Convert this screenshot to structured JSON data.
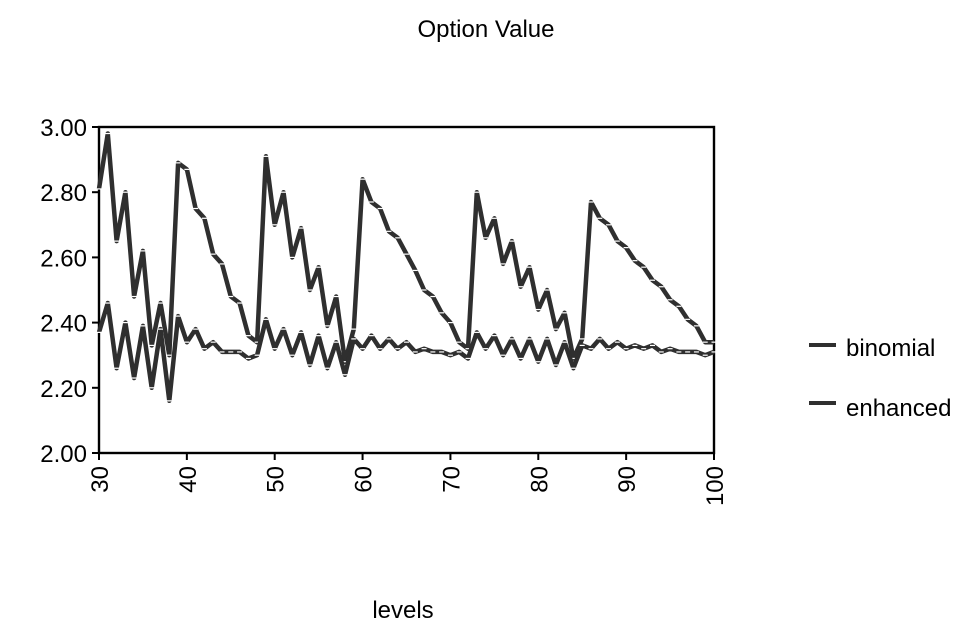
{
  "chart_data": {
    "type": "line",
    "title": "Option Value",
    "xlabel": "levels",
    "ylabel": "",
    "xlim": [
      30,
      100
    ],
    "ylim": [
      2.0,
      3.0
    ],
    "y_ticks": [
      "2.00",
      "2.20",
      "2.40",
      "2.60",
      "2.80",
      "3.00"
    ],
    "x_ticks": [
      "30",
      "40",
      "50",
      "60",
      "70",
      "80",
      "90",
      "100"
    ],
    "grid": false,
    "legend_position": "right",
    "line_color": "#2f2f2f",
    "x": [
      30,
      31,
      32,
      33,
      34,
      35,
      36,
      37,
      38,
      39,
      40,
      41,
      42,
      43,
      44,
      45,
      46,
      47,
      48,
      49,
      50,
      51,
      52,
      53,
      54,
      55,
      56,
      57,
      58,
      59,
      60,
      61,
      62,
      63,
      64,
      65,
      66,
      67,
      68,
      69,
      70,
      71,
      72,
      73,
      74,
      75,
      76,
      77,
      78,
      79,
      80,
      81,
      82,
      83,
      84,
      85,
      86,
      87,
      88,
      89,
      90,
      91,
      92,
      93,
      94,
      95,
      96,
      97,
      98,
      99,
      100
    ],
    "series": [
      {
        "name": "binomial",
        "values": [
          2.81,
          2.98,
          2.65,
          2.8,
          2.48,
          2.62,
          2.33,
          2.46,
          2.3,
          2.89,
          2.87,
          2.75,
          2.72,
          2.61,
          2.58,
          2.48,
          2.46,
          2.36,
          2.34,
          2.91,
          2.7,
          2.8,
          2.6,
          2.69,
          2.5,
          2.57,
          2.39,
          2.48,
          2.28,
          2.38,
          2.84,
          2.77,
          2.75,
          2.68,
          2.66,
          2.61,
          2.56,
          2.5,
          2.48,
          2.43,
          2.4,
          2.34,
          2.32,
          2.8,
          2.66,
          2.72,
          2.58,
          2.65,
          2.51,
          2.57,
          2.44,
          2.5,
          2.38,
          2.43,
          2.29,
          2.35,
          2.77,
          2.72,
          2.7,
          2.65,
          2.63,
          2.59,
          2.57,
          2.53,
          2.51,
          2.47,
          2.45,
          2.41,
          2.39,
          2.34,
          2.34
        ]
      },
      {
        "name": "enhanced",
        "values": [
          2.37,
          2.46,
          2.26,
          2.4,
          2.23,
          2.39,
          2.2,
          2.38,
          2.16,
          2.42,
          2.34,
          2.38,
          2.32,
          2.34,
          2.31,
          2.31,
          2.31,
          2.29,
          2.3,
          2.41,
          2.32,
          2.38,
          2.3,
          2.37,
          2.27,
          2.36,
          2.26,
          2.34,
          2.24,
          2.35,
          2.32,
          2.36,
          2.32,
          2.35,
          2.32,
          2.34,
          2.31,
          2.32,
          2.31,
          2.31,
          2.3,
          2.31,
          2.29,
          2.37,
          2.32,
          2.36,
          2.3,
          2.35,
          2.29,
          2.35,
          2.28,
          2.35,
          2.27,
          2.34,
          2.26,
          2.33,
          2.32,
          2.35,
          2.32,
          2.34,
          2.32,
          2.33,
          2.32,
          2.33,
          2.31,
          2.32,
          2.31,
          2.31,
          2.31,
          2.3,
          2.31
        ]
      }
    ]
  }
}
